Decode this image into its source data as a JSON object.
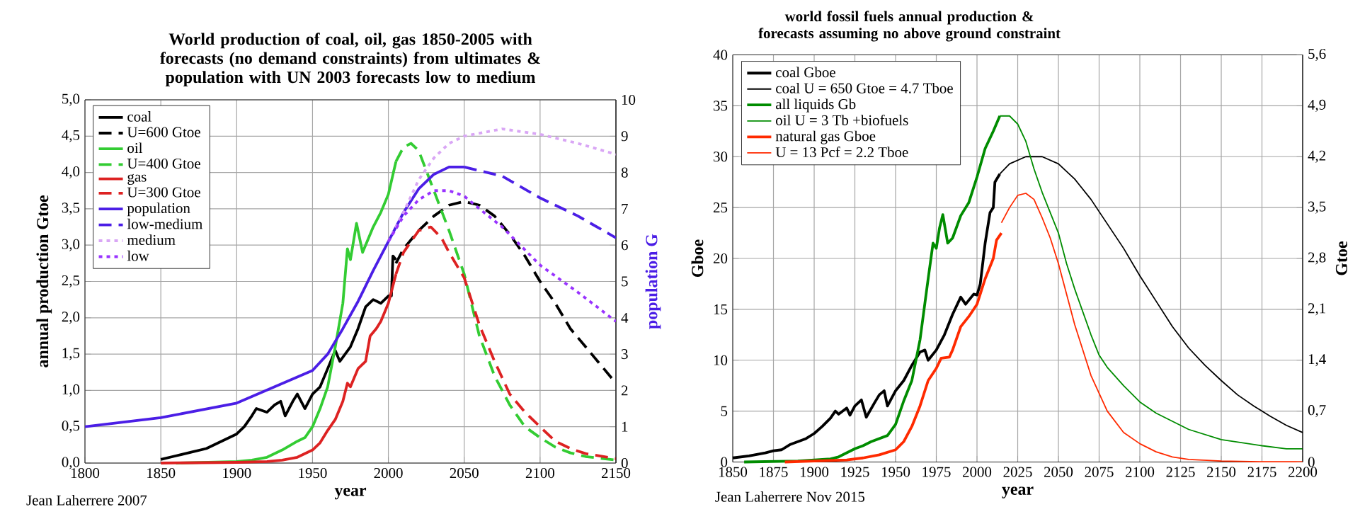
{
  "chart_data": [
    {
      "type": "line",
      "title": "World production of coal, oil, gas 1850-2005 with forecasts (no demand constraints) from ultimates & population with UN 2003 forecasts low to medium",
      "xlabel": "year",
      "ylabel": "annual production Gtoe",
      "y2label": "population G",
      "annotations": [
        "Jean Laherrere 2007"
      ],
      "xlim": [
        1800,
        2150
      ],
      "xticks": [
        1800,
        1850,
        1900,
        1950,
        2000,
        2050,
        2100,
        2150
      ],
      "ylim": [
        0,
        5
      ],
      "yticks": [
        {
          "value": 0,
          "label": "0,0"
        },
        {
          "value": 0.5,
          "label": "0,5"
        },
        {
          "value": 1,
          "label": "1,0"
        },
        {
          "value": 1.5,
          "label": "1,5"
        },
        {
          "value": 2,
          "label": "2,0"
        },
        {
          "value": 2.5,
          "label": "2,5"
        },
        {
          "value": 3,
          "label": "3,0"
        },
        {
          "value": 3.5,
          "label": "3,5"
        },
        {
          "value": 4,
          "label": "4,0"
        },
        {
          "value": 4.5,
          "label": "4,5"
        },
        {
          "value": 5,
          "label": "5,0"
        }
      ],
      "y2lim": [
        0,
        10
      ],
      "y2ticks": [
        0,
        1,
        2,
        3,
        4,
        5,
        6,
        7,
        8,
        9,
        10
      ],
      "grid": true,
      "legend": "top left",
      "series": [
        {
          "name": "coal",
          "color": "#000000",
          "line_style": "solid",
          "x": [
            1850,
            1860,
            1870,
            1880,
            1890,
            1900,
            1905,
            1910,
            1913,
            1920,
            1925,
            1929,
            1932,
            1937,
            1940,
            1945,
            1950,
            1955,
            1960,
            1965,
            1968,
            1975,
            1980,
            1985,
            1990,
            1995,
            2000,
            2002,
            2003,
            2005
          ],
          "values": [
            0.05,
            0.1,
            0.15,
            0.2,
            0.3,
            0.4,
            0.5,
            0.65,
            0.75,
            0.7,
            0.8,
            0.85,
            0.65,
            0.85,
            0.95,
            0.75,
            0.95,
            1.05,
            1.3,
            1.55,
            1.4,
            1.6,
            1.85,
            2.15,
            2.25,
            2.2,
            2.3,
            2.3,
            2.85,
            2.8
          ]
        },
        {
          "name": "U=600 Gtoe",
          "color": "#000000",
          "line_style": "dashed",
          "x": [
            2005,
            2010,
            2020,
            2030,
            2040,
            2050,
            2060,
            2070,
            2080,
            2090,
            2100,
            2110,
            2120,
            2130,
            2140,
            2150
          ],
          "values": [
            2.75,
            2.95,
            3.2,
            3.4,
            3.55,
            3.6,
            3.55,
            3.4,
            3.15,
            2.85,
            2.5,
            2.2,
            1.85,
            1.6,
            1.35,
            1.1
          ]
        },
        {
          "name": "oil",
          "color": "#33cc33",
          "line_style": "solid",
          "x": [
            1860,
            1900,
            1910,
            1920,
            1930,
            1940,
            1945,
            1950,
            1955,
            1960,
            1965,
            1970,
            1973,
            1975,
            1979,
            1983,
            1990,
            1995,
            2000,
            2005
          ],
          "values": [
            0,
            0.02,
            0.04,
            0.08,
            0.18,
            0.3,
            0.35,
            0.5,
            0.75,
            1.05,
            1.6,
            2.2,
            2.95,
            2.8,
            3.3,
            2.9,
            3.25,
            3.45,
            3.7,
            4.15
          ]
        },
        {
          "name": "U=400 Gtoe",
          "color": "#33cc33",
          "line_style": "dashed",
          "x": [
            2005,
            2010,
            2015,
            2020,
            2030,
            2040,
            2050,
            2060,
            2070,
            2080,
            2090,
            2100,
            2110,
            2120,
            2130,
            2150
          ],
          "values": [
            4.15,
            4.35,
            4.4,
            4.3,
            3.75,
            3.2,
            2.6,
            1.75,
            1.2,
            0.8,
            0.5,
            0.35,
            0.22,
            0.14,
            0.09,
            0.04
          ]
        },
        {
          "name": "gas",
          "color": "#dd2222",
          "line_style": "solid",
          "x": [
            1850,
            1900,
            1920,
            1930,
            1940,
            1950,
            1955,
            1960,
            1965,
            1970,
            1973,
            1975,
            1980,
            1985,
            1988,
            1992,
            1995,
            2000,
            2005
          ],
          "values": [
            0,
            0.01,
            0.02,
            0.04,
            0.08,
            0.18,
            0.28,
            0.45,
            0.6,
            0.85,
            1.1,
            1.05,
            1.3,
            1.4,
            1.75,
            1.85,
            1.95,
            2.2,
            2.6
          ]
        },
        {
          "name": "U=300 Gtoe",
          "color": "#dd2222",
          "line_style": "dashed",
          "x": [
            2005,
            2010,
            2020,
            2028,
            2035,
            2040,
            2050,
            2060,
            2070,
            2080,
            2090,
            2100,
            2110,
            2120,
            2130,
            2150
          ],
          "values": [
            2.6,
            2.9,
            3.2,
            3.25,
            3.1,
            2.9,
            2.55,
            1.9,
            1.4,
            0.95,
            0.7,
            0.5,
            0.3,
            0.2,
            0.13,
            0.06
          ]
        },
        {
          "name": "population",
          "color": "#4b1ee6",
          "line_style": "solid",
          "axis": "y2",
          "x": [
            1800,
            1850,
            1900,
            1950,
            1960,
            1970,
            1980,
            1990,
            2000,
            2010,
            2020,
            2030,
            2040,
            2050
          ],
          "values": [
            1.0,
            1.25,
            1.65,
            2.55,
            3.0,
            3.7,
            4.45,
            5.3,
            6.1,
            6.9,
            7.55,
            7.95,
            8.15,
            8.15
          ]
        },
        {
          "name": "low-medium",
          "color": "#4b1ee6",
          "line_style": "dashed",
          "axis": "y2",
          "x": [
            2050,
            2060,
            2075,
            2100,
            2125,
            2150
          ],
          "values": [
            8.15,
            8.05,
            7.9,
            7.3,
            6.8,
            6.2
          ]
        },
        {
          "name": "medium",
          "color": "#d9a6f5",
          "line_style": "dotted",
          "axis": "y2",
          "x": [
            2000,
            2010,
            2020,
            2030,
            2040,
            2050,
            2075,
            2100,
            2125,
            2150
          ],
          "values": [
            6.1,
            6.9,
            7.8,
            8.4,
            8.8,
            9.0,
            9.2,
            9.05,
            8.8,
            8.5
          ]
        },
        {
          "name": "low",
          "color": "#9933ff",
          "line_style": "dotted",
          "axis": "y2",
          "x": [
            2000,
            2010,
            2020,
            2030,
            2040,
            2050,
            2060,
            2075,
            2100,
            2125,
            2150
          ],
          "values": [
            6.1,
            6.8,
            7.25,
            7.5,
            7.5,
            7.35,
            7.0,
            6.5,
            5.45,
            4.7,
            3.9
          ]
        }
      ]
    },
    {
      "type": "line",
      "title": "world fossil fuels annual production & forecasts assuming no above ground constraint",
      "xlabel": "year",
      "ylabel": "Gboe",
      "y2label": "Gtoe",
      "annotations": [
        "Jean Laherrere Nov 2015"
      ],
      "xlim": [
        1850,
        2200
      ],
      "xticks": [
        1850,
        1875,
        1900,
        1925,
        1950,
        1975,
        2000,
        2025,
        2050,
        2075,
        2100,
        2125,
        2150,
        2175,
        2200
      ],
      "ylim": [
        0,
        40
      ],
      "yticks": [
        0,
        5,
        10,
        15,
        20,
        25,
        30,
        35,
        40
      ],
      "y2lim": [
        0,
        5.6
      ],
      "y2ticks": [
        0,
        {
          "value": 0.7,
          "label": "0,7"
        },
        {
          "value": 1.4,
          "label": "1,4"
        },
        {
          "value": 2.1,
          "label": "2,1"
        },
        {
          "value": 2.8,
          "label": "2,8"
        },
        {
          "value": 3.5,
          "label": "3,5"
        },
        {
          "value": 4.2,
          "label": "4,2"
        },
        {
          "value": 4.9,
          "label": "4,9"
        },
        {
          "value": 5.6,
          "label": "5,6"
        }
      ],
      "grid": true,
      "legend": "top left",
      "series": [
        {
          "name": "coal Gboe",
          "color": "#000000",
          "line_style": "solid",
          "x": [
            1850,
            1860,
            1870,
            1875,
            1880,
            1885,
            1890,
            1895,
            1900,
            1905,
            1910,
            1913,
            1915,
            1920,
            1922,
            1925,
            1929,
            1932,
            1937,
            1940,
            1943,
            1945,
            1950,
            1955,
            1960,
            1965,
            1968,
            1970,
            1975,
            1980,
            1985,
            1990,
            1993,
            1998,
            2000,
            2002,
            2005,
            2008,
            2010,
            2011,
            2014
          ],
          "values": [
            0.4,
            0.6,
            0.9,
            1.1,
            1.2,
            1.7,
            2.0,
            2.3,
            2.8,
            3.5,
            4.3,
            5.0,
            4.7,
            5.3,
            4.6,
            5.5,
            6.1,
            4.4,
            5.8,
            6.6,
            7.0,
            5.5,
            7.0,
            8.0,
            9.5,
            10.8,
            11.0,
            10.0,
            11.0,
            12.5,
            14.5,
            16.2,
            15.5,
            16.5,
            16.4,
            17.5,
            21.5,
            24.5,
            25.0,
            27.5,
            28.3
          ]
        },
        {
          "name": "coal U = 650 Gtoe = 4.7 Tboe",
          "color": "#000000",
          "line_style": "solid",
          "x": [
            2014,
            2020,
            2030,
            2040,
            2050,
            2060,
            2070,
            2080,
            2090,
            2100,
            2110,
            2120,
            2130,
            2140,
            2150,
            2160,
            2170,
            2180,
            2190,
            2200
          ],
          "values": [
            28.3,
            29.3,
            30.0,
            30.0,
            29.3,
            27.8,
            25.8,
            23.4,
            21.0,
            18.3,
            15.8,
            13.3,
            11.2,
            9.5,
            8.0,
            6.6,
            5.5,
            4.5,
            3.6,
            2.9
          ]
        },
        {
          "name": "all liquids Gb",
          "color": "#008c00",
          "line_style": "solid",
          "x": [
            1857,
            1890,
            1900,
            1910,
            1915,
            1920,
            1925,
            1930,
            1935,
            1940,
            1945,
            1950,
            1955,
            1960,
            1965,
            1970,
            1973,
            1975,
            1977,
            1979,
            1982,
            1985,
            1990,
            1995,
            2000,
            2005,
            2010,
            2014
          ],
          "values": [
            0,
            0.1,
            0.2,
            0.3,
            0.5,
            0.9,
            1.3,
            1.6,
            2.0,
            2.3,
            2.6,
            3.7,
            6.0,
            8.0,
            12.0,
            18.0,
            21.5,
            21.0,
            23.0,
            24.3,
            21.5,
            22.0,
            24.2,
            25.5,
            28.0,
            30.8,
            32.5,
            34.0
          ]
        },
        {
          "name": "oil U = 3 Tb +biofuels",
          "color": "#008c00",
          "line_style": "solid",
          "x": [
            2014,
            2020,
            2025,
            2030,
            2035,
            2040,
            2045,
            2050,
            2055,
            2060,
            2070,
            2075,
            2080,
            2090,
            2100,
            2110,
            2120,
            2130,
            2150,
            2175,
            2190,
            2200
          ],
          "values": [
            34.0,
            34.0,
            33.2,
            31.5,
            28.8,
            26.5,
            24.5,
            22.5,
            19.5,
            17.0,
            12.5,
            10.5,
            9.3,
            7.5,
            5.9,
            4.8,
            4.0,
            3.2,
            2.2,
            1.6,
            1.3,
            1.3
          ]
        },
        {
          "name": "natural gas Gboe",
          "color": "#ff2a00",
          "line_style": "solid",
          "x": [
            1882,
            1900,
            1920,
            1930,
            1940,
            1950,
            1955,
            1960,
            1965,
            1970,
            1975,
            1978,
            1983,
            1985,
            1990,
            1995,
            2000,
            2005,
            2010,
            2012,
            2015
          ],
          "values": [
            0,
            0.1,
            0.2,
            0.4,
            0.7,
            1.2,
            2.0,
            3.5,
            5.5,
            8.0,
            9.2,
            10.2,
            10.3,
            11.0,
            13.3,
            14.3,
            15.5,
            18.0,
            20.0,
            21.8,
            22.5
          ]
        },
        {
          "name": "U = 13 Pcf = 2.2 Tboe",
          "color": "#ff2a00",
          "line_style": "solid",
          "x": [
            2015,
            2020,
            2025,
            2030,
            2035,
            2040,
            2045,
            2050,
            2055,
            2060,
            2070,
            2080,
            2090,
            2100,
            2110,
            2120,
            2130,
            2150,
            2175,
            2200
          ],
          "values": [
            23.5,
            25.0,
            26.2,
            26.4,
            25.8,
            24.0,
            22.0,
            19.5,
            16.5,
            13.5,
            8.5,
            5.0,
            2.9,
            1.8,
            1.0,
            0.5,
            0.25,
            0.1,
            0.02,
            0.02
          ]
        }
      ]
    }
  ]
}
